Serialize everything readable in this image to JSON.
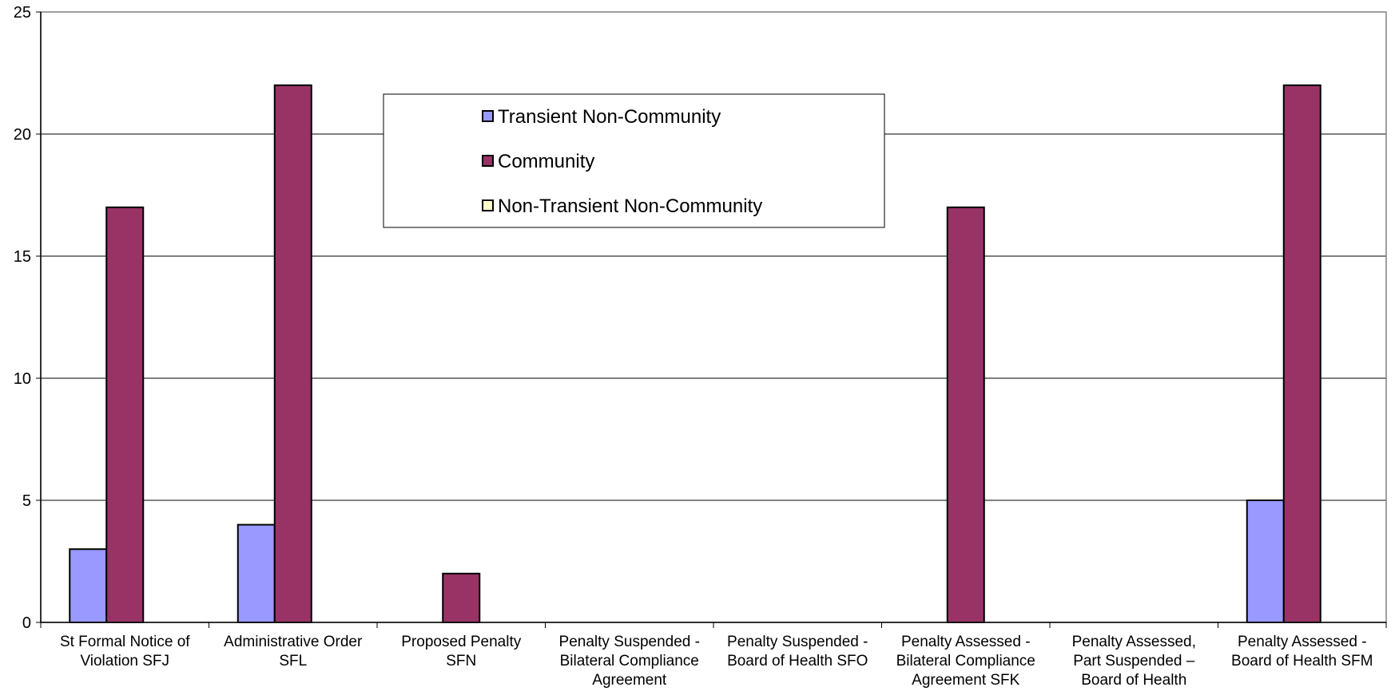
{
  "chart_data": {
    "type": "bar",
    "title": "",
    "xlabel": "",
    "ylabel": "",
    "ylim": [
      0,
      25
    ],
    "yticks": [
      "0",
      "5",
      "10",
      "15",
      "20",
      "25"
    ],
    "grid": true,
    "legend_position": "top-center",
    "categories": [
      [
        "St Formal Notice of",
        "Violation SFJ"
      ],
      [
        "Administrative Order",
        "SFL"
      ],
      [
        "Proposed Penalty",
        "SFN"
      ],
      [
        "Penalty Suspended -",
        "Bilateral Compliance",
        "Agreement"
      ],
      [
        "Penalty Suspended -",
        "Board of Health SFO"
      ],
      [
        "Penalty Assessed -",
        "Bilateral Compliance",
        "Agreement SFK"
      ],
      [
        "Penalty Assessed,",
        "Part Suspended –",
        "Board of Health"
      ],
      [
        "Penalty Assessed -",
        "Board of Health SFM"
      ]
    ],
    "series": [
      {
        "name": "Transient Non-Community",
        "color": "#9999ff",
        "values": [
          3,
          4,
          0,
          0,
          0,
          0,
          0,
          5
        ]
      },
      {
        "name": "Community",
        "color": "#993366",
        "values": [
          17,
          22,
          2,
          0,
          0,
          17,
          0,
          22
        ]
      },
      {
        "name": "Non-Transient Non-Community",
        "color": "#ffffcc",
        "values": [
          0,
          0,
          0,
          0,
          0,
          0,
          0,
          0
        ]
      }
    ]
  }
}
